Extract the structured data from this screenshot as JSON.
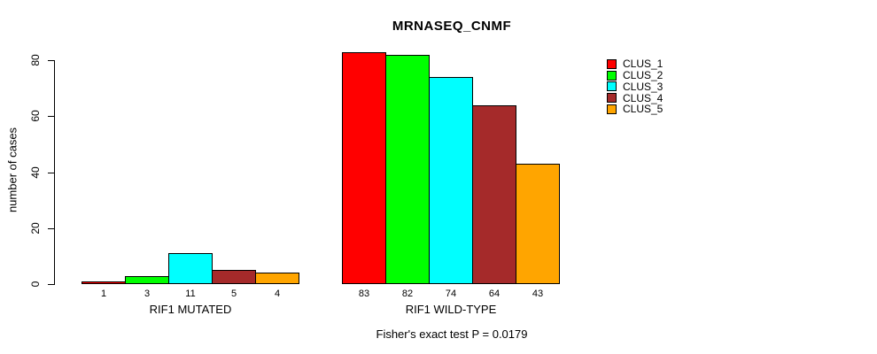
{
  "title": "MRNASEQ_CNMF",
  "ylabel": "number of cases",
  "footer": "Fisher's exact test P = 0.0179",
  "legend": {
    "entries": [
      {
        "label": "CLUS_1",
        "color": "#FF0000"
      },
      {
        "label": "CLUS_2",
        "color": "#00FF00"
      },
      {
        "label": "CLUS_3",
        "color": "#00FFFF"
      },
      {
        "label": "CLUS_4",
        "color": "#A52A2A"
      },
      {
        "label": "CLUS_5",
        "color": "#FFA500"
      }
    ]
  },
  "chart_data": {
    "type": "bar",
    "title": "MRNASEQ_CNMF",
    "ylabel": "number of cases",
    "xlabel": "",
    "ylim": [
      0,
      85
    ],
    "yticks": [
      0,
      20,
      40,
      60,
      80
    ],
    "grid": false,
    "legend_position": "top-right",
    "series_names": [
      "CLUS_1",
      "CLUS_2",
      "CLUS_3",
      "CLUS_4",
      "CLUS_5"
    ],
    "series_colors": [
      "#FF0000",
      "#00FF00",
      "#00FFFF",
      "#A52A2A",
      "#FFA500"
    ],
    "groups": [
      {
        "label": "RIF1 MUTATED",
        "values": [
          1,
          3,
          11,
          5,
          4
        ]
      },
      {
        "label": "RIF1 WILD-TYPE",
        "values": [
          83,
          82,
          74,
          64,
          43
        ]
      }
    ],
    "annotation": "Fisher's exact test P = 0.0179"
  }
}
